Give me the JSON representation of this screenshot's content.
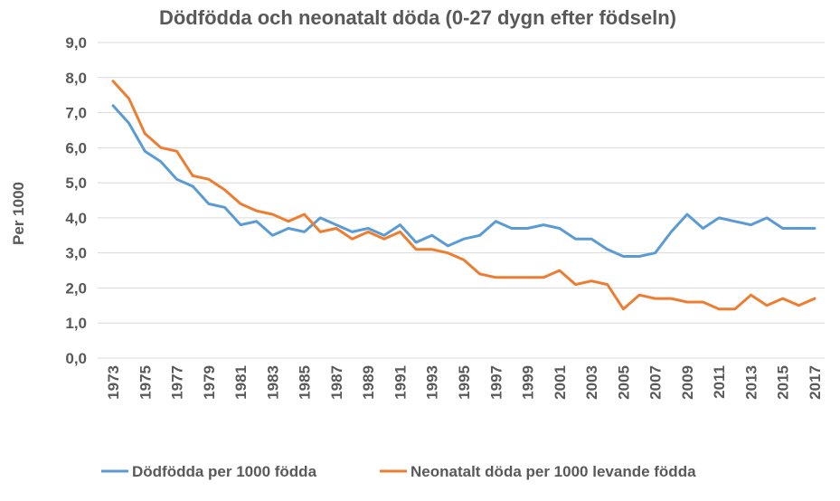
{
  "chart_data": {
    "type": "line",
    "title": "Dödfödda och neonatalt döda (0-27 dygn efter födseln)",
    "xlabel": "",
    "ylabel": "Per 1000",
    "ylim": [
      0,
      9
    ],
    "yticks": [
      "0,0",
      "1,0",
      "2,0",
      "3,0",
      "4,0",
      "5,0",
      "6,0",
      "7,0",
      "8,0",
      "9,0"
    ],
    "x": [
      1973,
      1974,
      1975,
      1976,
      1977,
      1978,
      1979,
      1980,
      1981,
      1982,
      1983,
      1984,
      1985,
      1986,
      1987,
      1988,
      1989,
      1990,
      1991,
      1992,
      1993,
      1994,
      1995,
      1996,
      1997,
      1998,
      1999,
      2000,
      2001,
      2002,
      2003,
      2004,
      2005,
      2006,
      2007,
      2008,
      2009,
      2010,
      2011,
      2012,
      2013,
      2014,
      2015,
      2016,
      2017
    ],
    "xtick_labels": [
      "1973",
      "1975",
      "1977",
      "1979",
      "1981",
      "1983",
      "1985",
      "1987",
      "1989",
      "1991",
      "1993",
      "1995",
      "1997",
      "1999",
      "2001",
      "2003",
      "2005",
      "2007",
      "2009",
      "2011",
      "2013",
      "2015",
      "2017"
    ],
    "grid": true,
    "legend_position": "bottom",
    "series": [
      {
        "name": "Dödfödda per 1000 födda",
        "color": "#5b9bd5",
        "values": [
          7.2,
          6.7,
          5.9,
          5.6,
          5.1,
          4.9,
          4.4,
          4.3,
          3.8,
          3.9,
          3.5,
          3.7,
          3.6,
          4.0,
          3.8,
          3.6,
          3.7,
          3.5,
          3.8,
          3.3,
          3.5,
          3.2,
          3.4,
          3.5,
          3.9,
          3.7,
          3.7,
          3.8,
          3.7,
          3.4,
          3.4,
          3.1,
          2.9,
          2.9,
          3.0,
          3.6,
          4.1,
          3.7,
          4.0,
          3.9,
          3.8,
          4.0,
          3.7,
          3.7,
          3.7
        ]
      },
      {
        "name": "Neonatalt döda per 1000 levande födda",
        "color": "#ed7d31",
        "values": [
          7.9,
          7.4,
          6.4,
          6.0,
          5.9,
          5.2,
          5.1,
          4.8,
          4.4,
          4.2,
          4.1,
          3.9,
          4.1,
          3.6,
          3.7,
          3.4,
          3.6,
          3.4,
          3.6,
          3.1,
          3.1,
          3.0,
          2.8,
          2.4,
          2.3,
          2.3,
          2.3,
          2.3,
          2.5,
          2.1,
          2.2,
          2.1,
          1.4,
          1.8,
          1.7,
          1.7,
          1.6,
          1.6,
          1.4,
          1.4,
          1.8,
          1.5,
          1.7,
          1.5,
          1.7
        ]
      }
    ]
  }
}
